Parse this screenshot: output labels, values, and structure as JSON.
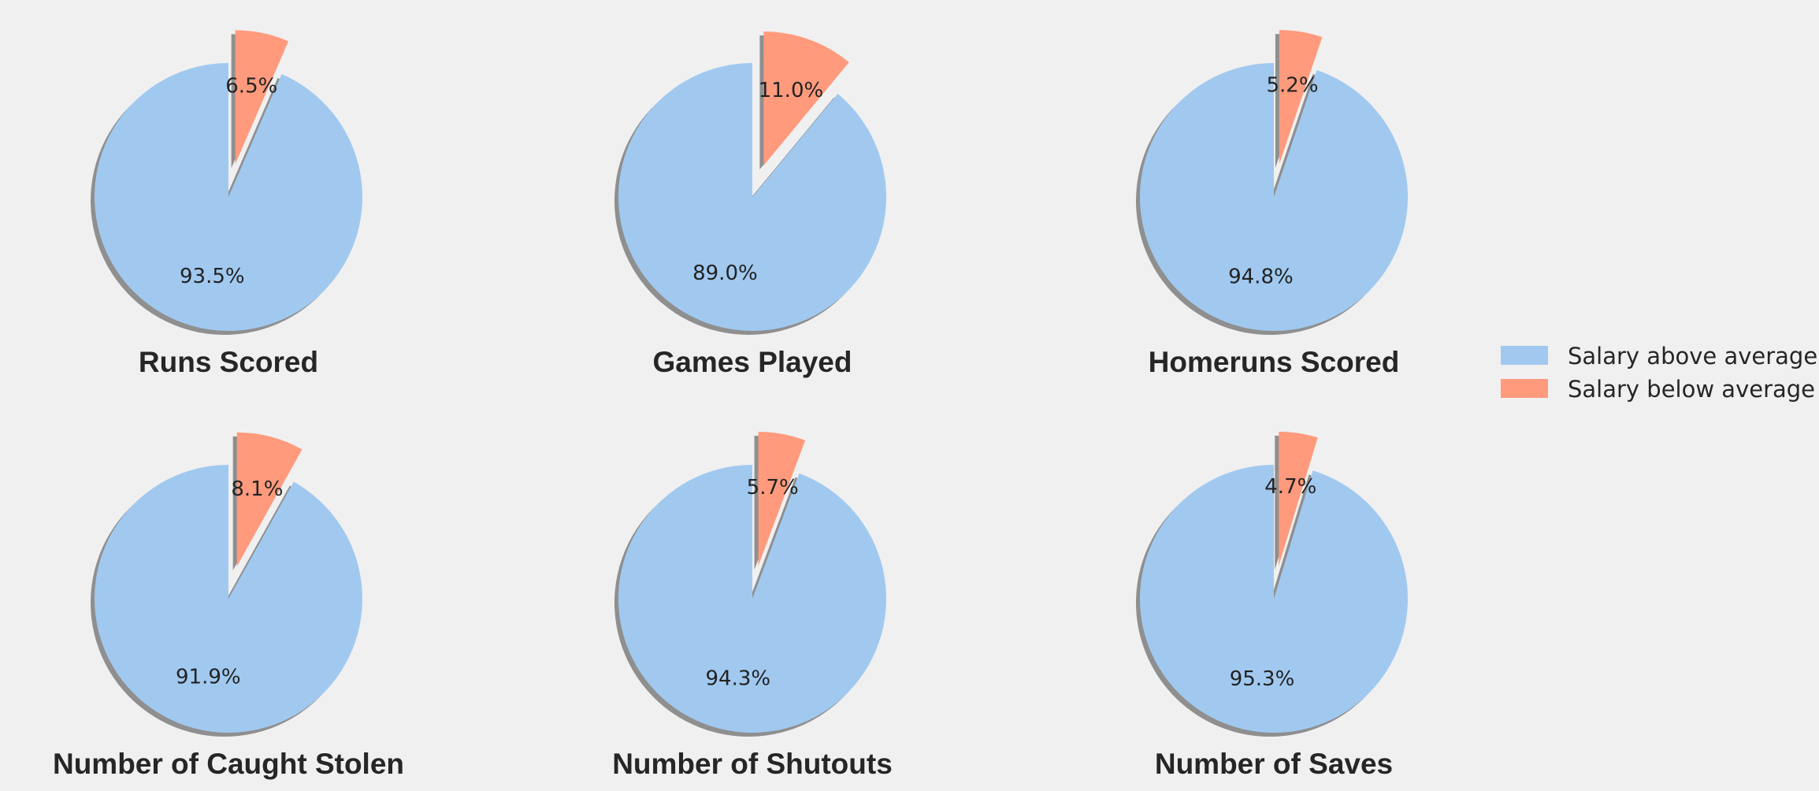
{
  "chart_data": {
    "type": "pie",
    "series_names": [
      "Salary above average",
      "Salary below average"
    ],
    "colors": {
      "above": "#a1c9f0",
      "below": "#ff9a7d",
      "shadow": "#8f8f8f",
      "background": "#f0f0f0"
    },
    "legend": {
      "position": "right",
      "entries": [
        "Salary above average",
        "Salary below average"
      ]
    },
    "charts": [
      {
        "title": "Runs Scored",
        "values": [
          93.5,
          6.5
        ],
        "labels": [
          "93.5%",
          "6.5%"
        ]
      },
      {
        "title": "Games Played",
        "values": [
          89.0,
          11.0
        ],
        "labels": [
          "89.0%",
          "11.0%"
        ]
      },
      {
        "title": "Homeruns Scored",
        "values": [
          94.8,
          5.2
        ],
        "labels": [
          "94.8%",
          "5.2%"
        ]
      },
      {
        "title": "Number of Caught Stolen",
        "values": [
          91.9,
          8.1
        ],
        "labels": [
          "91.9%",
          "8.1%"
        ]
      },
      {
        "title": "Number of Shutouts",
        "values": [
          94.3,
          5.7
        ],
        "labels": [
          "94.3%",
          "5.7%"
        ]
      },
      {
        "title": "Number of Saves",
        "values": [
          95.3,
          4.7
        ],
        "labels": [
          "95.3%",
          "4.7%"
        ]
      }
    ]
  }
}
